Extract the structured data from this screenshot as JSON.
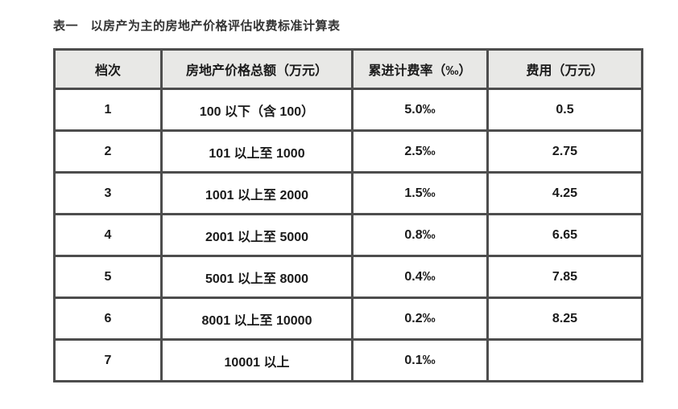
{
  "document": {
    "title": "表一　以房产为主的房地产价格评估收费标准计算表"
  },
  "table": {
    "columns": {
      "grade": "档次",
      "range": "房地产价格总额（万元）",
      "rate": "累进计费率（‰）",
      "fee": "费用（万元）"
    },
    "rows": [
      {
        "grade": "1",
        "range": "100 以下（含 100）",
        "rate": "5.0‰",
        "fee": "0.5"
      },
      {
        "grade": "2",
        "range": "101 以上至 1000",
        "rate": "2.5‰",
        "fee": "2.75"
      },
      {
        "grade": "3",
        "range": "1001 以上至 2000",
        "rate": "1.5‰",
        "fee": "4.25"
      },
      {
        "grade": "4",
        "range": "2001 以上至 5000",
        "rate": "0.8‰",
        "fee": "6.65"
      },
      {
        "grade": "5",
        "range": "5001 以上至 8000",
        "rate": "0.4‰",
        "fee": "7.85"
      },
      {
        "grade": "6",
        "range": "8001 以上至 10000",
        "rate": "0.2‰",
        "fee": "8.25"
      },
      {
        "grade": "7",
        "range": "10001 以上",
        "rate": "0.1‰",
        "fee": ""
      }
    ]
  },
  "colors": {
    "header_bg": "#e8e8e6",
    "border": "#4d4d4d",
    "title_text": "#333333",
    "cell_text": "#1a1a1a",
    "page_bg": "#ffffff"
  }
}
